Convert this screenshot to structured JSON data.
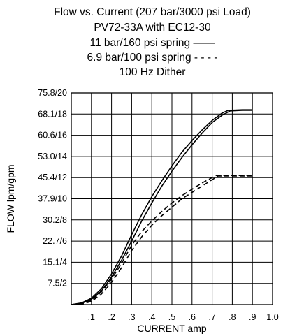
{
  "chart_data": {
    "type": "line",
    "title_lines": [
      "Flow vs. Current (207 bar/3000 psi Load)",
      "PV72-33A  with EC12-30",
      "11 bar/160 psi spring ——",
      "6.9 bar/100 psi spring - - - -",
      "100 Hz Dither"
    ],
    "xlabel": "CURRENT amp",
    "ylabel": "FLOW lpm/gpm",
    "xlim": [
      0,
      1.0
    ],
    "ylim": [
      0,
      20
    ],
    "grid": true,
    "x_tick_values": [
      0.1,
      0.2,
      0.3,
      0.4,
      0.5,
      0.6,
      0.7,
      0.8,
      0.9,
      1.0
    ],
    "x_tick_labels": [
      ".1",
      ".2",
      ".3",
      ".4",
      ".5",
      ".6",
      ".7",
      ".8",
      ".9",
      "1.0"
    ],
    "y_tick_values": [
      2,
      4,
      6,
      8,
      10,
      12,
      14,
      16,
      18,
      20
    ],
    "y_tick_labels": [
      "7.5/2",
      "15.1/4",
      "22.7/6",
      "30.2/8",
      "37.9/10",
      "45.4/12",
      "53.0/14",
      "60.6/16",
      "68.1/18",
      "75.8/20"
    ],
    "series": [
      {
        "style": "solid",
        "x": [
          0,
          0.05,
          0.1,
          0.15,
          0.2,
          0.25,
          0.3,
          0.35,
          0.4,
          0.45,
          0.5,
          0.55,
          0.6,
          0.65,
          0.7,
          0.75,
          0.78,
          0.85,
          0.9
        ],
        "y": [
          0,
          0.15,
          0.6,
          1.5,
          2.9,
          4.6,
          6.6,
          8.5,
          10.2,
          11.7,
          13.1,
          14.4,
          15.5,
          16.5,
          17.4,
          18.1,
          18.35,
          18.4,
          18.4
        ]
      },
      {
        "style": "solid",
        "x": [
          0,
          0.05,
          0.1,
          0.15,
          0.2,
          0.25,
          0.3,
          0.35,
          0.4,
          0.45,
          0.5,
          0.55,
          0.6,
          0.65,
          0.7,
          0.75,
          0.79,
          0.85,
          0.9
        ],
        "y": [
          0,
          0.1,
          0.5,
          1.3,
          2.6,
          4.2,
          6.0,
          7.9,
          9.6,
          11.2,
          12.6,
          13.9,
          15.1,
          16.2,
          17.2,
          17.9,
          18.3,
          18.35,
          18.35
        ]
      },
      {
        "style": "dashed",
        "x": [
          0,
          0.05,
          0.1,
          0.15,
          0.2,
          0.25,
          0.3,
          0.35,
          0.4,
          0.45,
          0.5,
          0.55,
          0.6,
          0.65,
          0.7,
          0.72,
          0.8,
          0.9
        ],
        "y": [
          0,
          0.05,
          0.4,
          1.2,
          2.4,
          3.9,
          5.6,
          6.9,
          7.9,
          8.8,
          9.6,
          10.3,
          10.9,
          11.5,
          12.0,
          12.2,
          12.2,
          12.2
        ]
      },
      {
        "style": "dashed",
        "x": [
          0,
          0.05,
          0.1,
          0.15,
          0.2,
          0.25,
          0.3,
          0.35,
          0.4,
          0.45,
          0.5,
          0.55,
          0.6,
          0.65,
          0.7,
          0.73,
          0.8,
          0.9
        ],
        "y": [
          0,
          0.03,
          0.3,
          1.0,
          2.1,
          3.5,
          5.1,
          6.4,
          7.5,
          8.4,
          9.2,
          10.0,
          10.6,
          11.2,
          11.8,
          12.15,
          12.15,
          12.15
        ]
      }
    ]
  }
}
